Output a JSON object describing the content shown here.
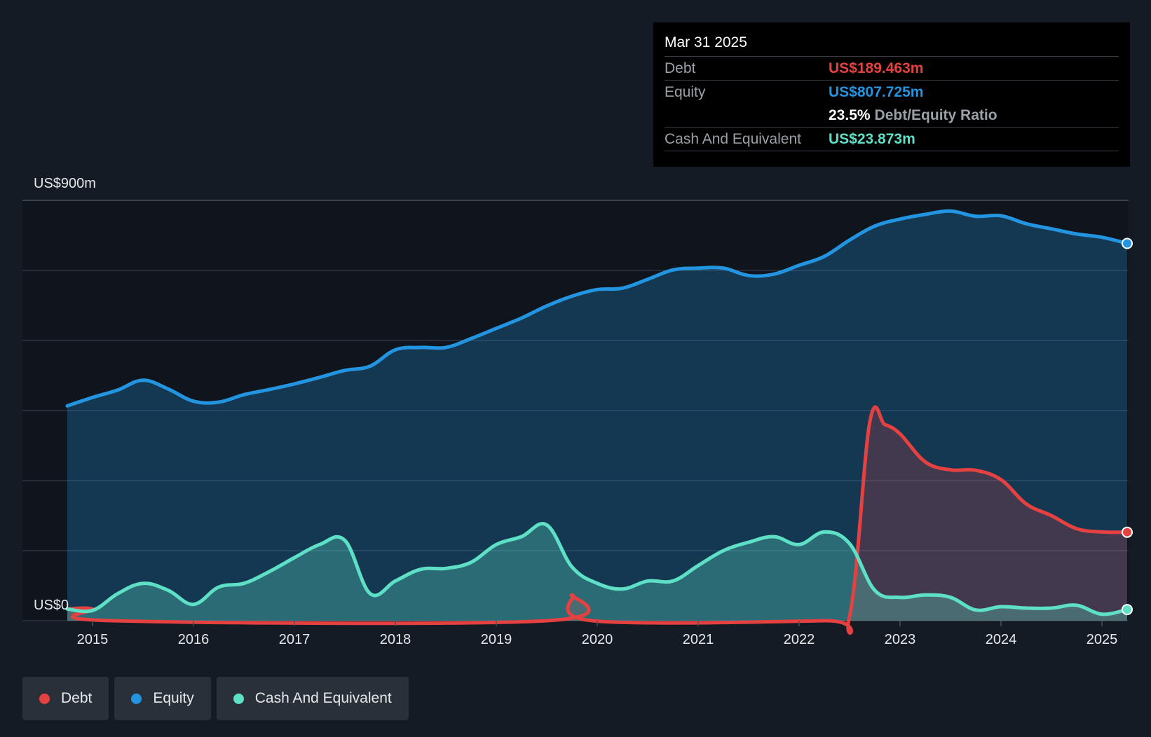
{
  "chart_data": {
    "type": "area",
    "title": "",
    "y_axis": {
      "top_label": "US$900m",
      "bottom_label": "US$0",
      "ylim": [
        0,
        900
      ],
      "unit": "US$m"
    },
    "x_ticks": [
      "2015",
      "2016",
      "2017",
      "2018",
      "2019",
      "2020",
      "2021",
      "2022",
      "2023",
      "2024",
      "2025"
    ],
    "xlim": [
      2014.75,
      2025.25
    ],
    "series": [
      {
        "name": "Equity",
        "color": "#2394df",
        "points": [
          [
            2014.75,
            460
          ],
          [
            2015.0,
            478
          ],
          [
            2015.25,
            494
          ],
          [
            2015.5,
            515
          ],
          [
            2015.75,
            496
          ],
          [
            2016.0,
            470
          ],
          [
            2016.25,
            468
          ],
          [
            2016.5,
            484
          ],
          [
            2016.75,
            495
          ],
          [
            2017.0,
            507
          ],
          [
            2017.25,
            521
          ],
          [
            2017.5,
            536
          ],
          [
            2017.75,
            545
          ],
          [
            2018.0,
            580
          ],
          [
            2018.25,
            585
          ],
          [
            2018.5,
            585
          ],
          [
            2018.75,
            604
          ],
          [
            2019.0,
            626
          ],
          [
            2019.25,
            648
          ],
          [
            2019.5,
            674
          ],
          [
            2019.75,
            695
          ],
          [
            2020.0,
            709
          ],
          [
            2020.25,
            712
          ],
          [
            2020.5,
            731
          ],
          [
            2020.75,
            751
          ],
          [
            2021.0,
            755
          ],
          [
            2021.25,
            755
          ],
          [
            2021.5,
            739
          ],
          [
            2021.75,
            742
          ],
          [
            2022.0,
            761
          ],
          [
            2022.25,
            780
          ],
          [
            2022.5,
            815
          ],
          [
            2022.75,
            845
          ],
          [
            2023.0,
            860
          ],
          [
            2023.25,
            870
          ],
          [
            2023.5,
            877
          ],
          [
            2023.75,
            866
          ],
          [
            2024.0,
            867
          ],
          [
            2024.25,
            850
          ],
          [
            2024.5,
            839
          ],
          [
            2024.75,
            828
          ],
          [
            2025.0,
            821
          ],
          [
            2025.25,
            807.725
          ]
        ]
      },
      {
        "name": "Debt",
        "color": "#e64141",
        "points": [
          [
            2014.75,
            25
          ],
          [
            2015.0,
            25
          ],
          [
            2015.2,
            0
          ],
          [
            2019.5,
            0
          ],
          [
            2019.75,
            55
          ],
          [
            2019.95,
            0
          ],
          [
            2022.25,
            0
          ],
          [
            2022.5,
            10
          ],
          [
            2022.7,
            425
          ],
          [
            2022.85,
            420
          ],
          [
            2023.0,
            400
          ],
          [
            2023.25,
            340
          ],
          [
            2023.5,
            323
          ],
          [
            2023.75,
            322
          ],
          [
            2024.0,
            302
          ],
          [
            2024.25,
            250
          ],
          [
            2024.5,
            225
          ],
          [
            2024.75,
            197
          ],
          [
            2025.0,
            190
          ],
          [
            2025.25,
            189.463
          ]
        ]
      },
      {
        "name": "Cash And Equivalent",
        "color": "#5de0c6",
        "points": [
          [
            2014.75,
            25
          ],
          [
            2015.0,
            22
          ],
          [
            2015.25,
            58
          ],
          [
            2015.5,
            80
          ],
          [
            2015.75,
            65
          ],
          [
            2016.0,
            35
          ],
          [
            2016.25,
            72
          ],
          [
            2016.5,
            80
          ],
          [
            2016.75,
            105
          ],
          [
            2017.0,
            135
          ],
          [
            2017.25,
            163
          ],
          [
            2017.5,
            172
          ],
          [
            2017.75,
            58
          ],
          [
            2018.0,
            85
          ],
          [
            2018.25,
            110
          ],
          [
            2018.5,
            112
          ],
          [
            2018.75,
            125
          ],
          [
            2019.0,
            163
          ],
          [
            2019.25,
            180
          ],
          [
            2019.5,
            205
          ],
          [
            2019.75,
            115
          ],
          [
            2020.0,
            80
          ],
          [
            2020.25,
            68
          ],
          [
            2020.5,
            85
          ],
          [
            2020.75,
            85
          ],
          [
            2021.0,
            118
          ],
          [
            2021.25,
            150
          ],
          [
            2021.5,
            168
          ],
          [
            2021.75,
            180
          ],
          [
            2022.0,
            163
          ],
          [
            2022.25,
            190
          ],
          [
            2022.5,
            165
          ],
          [
            2022.75,
            65
          ],
          [
            2023.0,
            50
          ],
          [
            2023.25,
            55
          ],
          [
            2023.5,
            50
          ],
          [
            2023.75,
            23
          ],
          [
            2024.0,
            30
          ],
          [
            2024.25,
            27
          ],
          [
            2024.5,
            27
          ],
          [
            2024.75,
            33
          ],
          [
            2025.0,
            14
          ],
          [
            2025.25,
            23.873
          ]
        ]
      }
    ],
    "highlight_from": 2014.75
  },
  "tooltip": {
    "date": "Mar 31 2025",
    "debt_label": "Debt",
    "debt_value": "US$189.463m",
    "equity_label": "Equity",
    "equity_value": "US$807.725m",
    "ratio_value": "23.5%",
    "ratio_label": "Debt/Equity Ratio",
    "cash_label": "Cash And Equivalent",
    "cash_value": "US$23.873m"
  },
  "legend": [
    {
      "label": "Debt",
      "color": "#e64141"
    },
    {
      "label": "Equity",
      "color": "#2394df"
    },
    {
      "label": "Cash And Equivalent",
      "color": "#5de0c6"
    }
  ],
  "colors": {
    "background": "#151b24",
    "plot_background": "#10151d",
    "grid": "#2e3440",
    "debt": "#e64141",
    "equity": "#2394df",
    "cash": "#5de0c6"
  }
}
